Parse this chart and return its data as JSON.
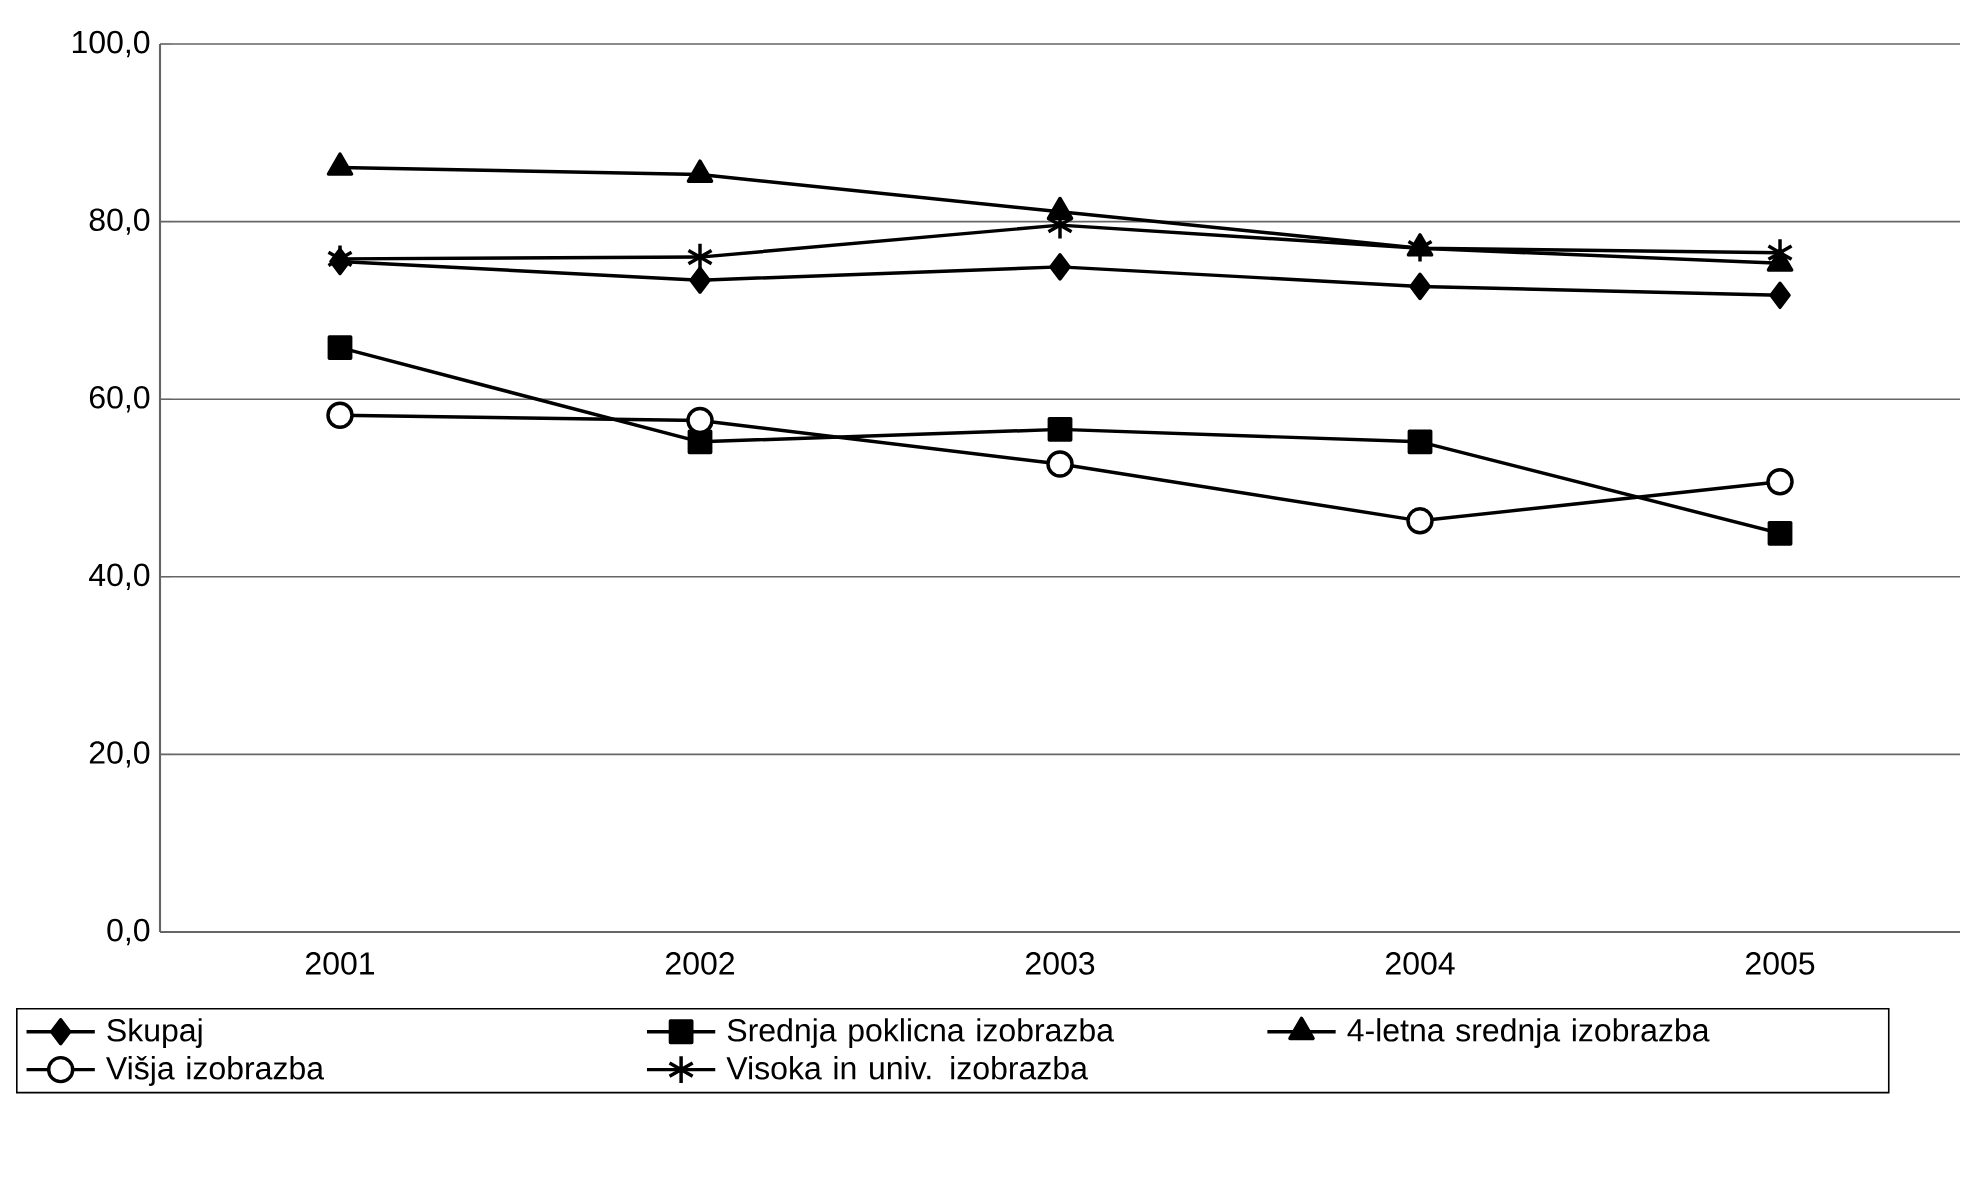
{
  "chart_data": {
    "type": "line",
    "categories": [
      "2001",
      "2002",
      "2003",
      "2004",
      "2005"
    ],
    "series": [
      {
        "name": "Skupaj",
        "color": "#000000",
        "marker": "diamond",
        "values": [
          75.5,
          73.4,
          74.9,
          72.7,
          71.7
        ]
      },
      {
        "name": "Srednja poklicna izobrazba",
        "color": "#000000",
        "marker": "square",
        "values": [
          65.8,
          55.2,
          56.6,
          55.2,
          44.9
        ]
      },
      {
        "name": "4-letna srednja izobrazba",
        "color": "#000000",
        "marker": "triangle",
        "values": [
          86.1,
          85.3,
          81.1,
          77.0,
          75.3
        ]
      },
      {
        "name": "Višja  izobrazba",
        "color": "#000000",
        "marker": "circle",
        "values": [
          58.2,
          57.6,
          52.7,
          46.3,
          50.7
        ]
      },
      {
        "name": "Visoka in univ. izobrazba",
        "color": "#000000",
        "marker": "cross",
        "values": [
          75.8,
          76.0,
          79.6,
          77.0,
          76.5
        ]
      }
    ],
    "ylim": [
      0,
      100
    ],
    "yticks": [
      {
        "value": 0,
        "label": "0,0"
      },
      {
        "value": 20,
        "label": "20,0"
      },
      {
        "value": 40,
        "label": "40,0"
      },
      {
        "value": 60,
        "label": "60,0"
      },
      {
        "value": 80,
        "label": "80,0"
      },
      {
        "value": 100,
        "label": "100,0"
      }
    ],
    "grid": "y",
    "legend": "bottom",
    "line_style": "solid"
  }
}
